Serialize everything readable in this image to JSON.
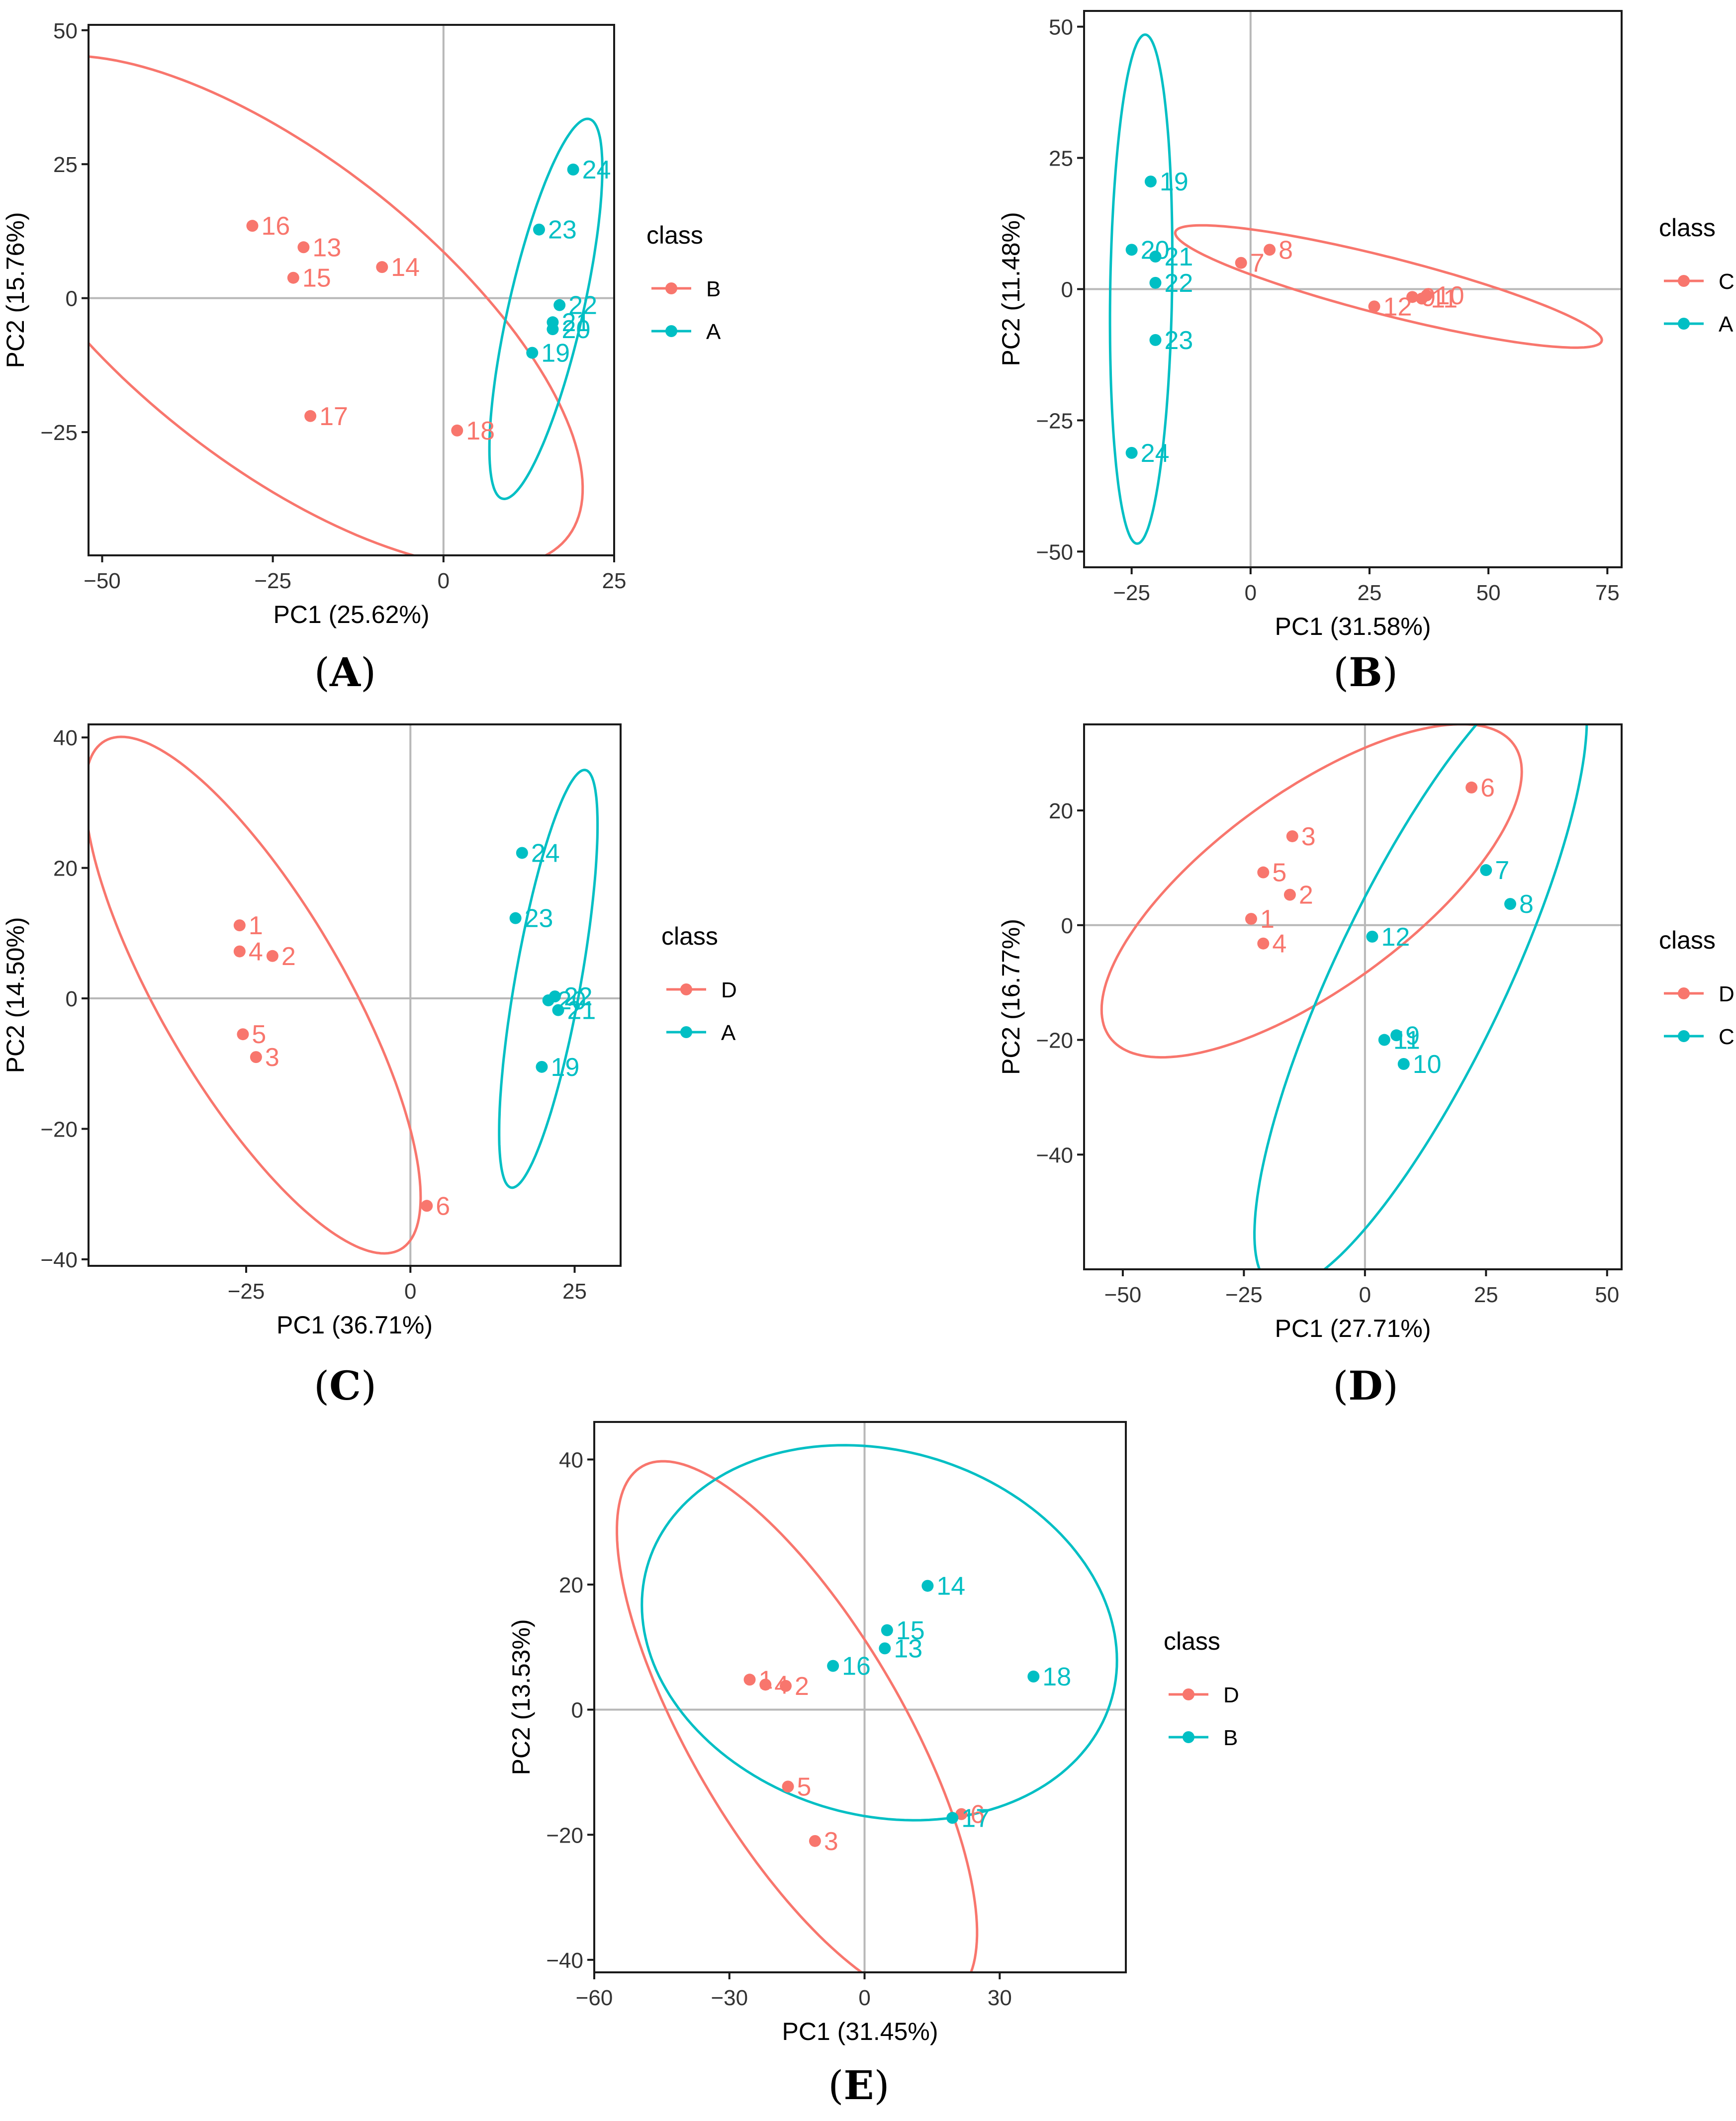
{
  "figure": {
    "colors": {
      "red": "#F8766D",
      "teal": "#00BFC4",
      "frame": "#1a1a1a",
      "zero": "#b8b8b8",
      "text": "#333333"
    },
    "legend_title": "class"
  },
  "chart_data": [
    {
      "id": "A",
      "type": "scatter",
      "caption_letter": "A",
      "xlabel": "PC1 (25.62%)",
      "ylabel": "PC2 (15.76%)",
      "xlim": [
        -52,
        25
      ],
      "ylim": [
        -48,
        51
      ],
      "xticks": [
        -50,
        -25,
        0,
        25
      ],
      "yticks": [
        50,
        25,
        0,
        -25
      ],
      "legend": [
        {
          "name": "B",
          "color": "red"
        },
        {
          "name": "A",
          "color": "teal"
        }
      ],
      "series": [
        {
          "name": "B",
          "color": "red",
          "points": [
            {
              "label": "16",
              "x": -28,
              "y": 13.5
            },
            {
              "label": "13",
              "x": -20.5,
              "y": 9.5
            },
            {
              "label": "14",
              "x": -9,
              "y": 5.8
            },
            {
              "label": "15",
              "x": -22,
              "y": 3.8
            },
            {
              "label": "17",
              "x": -19.5,
              "y": -22
            },
            {
              "label": "18",
              "x": 2,
              "y": -24.7
            }
          ],
          "ellipse": {
            "cx": -24,
            "cy": -2.5,
            "rx": 60,
            "ry": 25.5,
            "angle": -48
          }
        },
        {
          "name": "A",
          "color": "teal",
          "points": [
            {
              "label": "24",
              "x": 19,
              "y": 24
            },
            {
              "label": "23",
              "x": 14,
              "y": 12.8
            },
            {
              "label": "22",
              "x": 17,
              "y": -1.3
            },
            {
              "label": "21",
              "x": 16,
              "y": -4.5
            },
            {
              "label": "20",
              "x": 16,
              "y": -5.8
            },
            {
              "label": "19",
              "x": 13,
              "y": -10.2
            }
          ],
          "ellipse": {
            "cx": 15,
            "cy": -2,
            "rx": 36,
            "ry": 5.5,
            "angle": 80
          }
        }
      ]
    },
    {
      "id": "B",
      "type": "scatter",
      "caption_letter": "B",
      "xlabel": "PC1 (31.58%)",
      "ylabel": "PC2 (11.48%)",
      "xlim": [
        -35,
        78
      ],
      "ylim": [
        -53,
        53
      ],
      "xticks": [
        -25,
        0,
        25,
        50,
        75
      ],
      "yticks": [
        50,
        25,
        0,
        -25,
        -50
      ],
      "legend": [
        {
          "name": "C",
          "color": "red"
        },
        {
          "name": "A",
          "color": "teal"
        }
      ],
      "series": [
        {
          "name": "C",
          "color": "red",
          "points": [
            {
              "label": "7",
              "x": -2,
              "y": 5
            },
            {
              "label": "8",
              "x": 4,
              "y": 7.5
            },
            {
              "label": "12",
              "x": 26,
              "y": -3.3
            },
            {
              "label": "9",
              "x": 34,
              "y": -1.5
            },
            {
              "label": "11",
              "x": 36,
              "y": -1.8
            },
            {
              "label": "10",
              "x": 37,
              "y": -1.2
            }
          ],
          "ellipse": {
            "cx": 29,
            "cy": 0.5,
            "rx": 46,
            "ry": 5.5,
            "angle": -13
          }
        },
        {
          "name": "A",
          "color": "teal",
          "points": [
            {
              "label": "19",
              "x": -21,
              "y": 20.5
            },
            {
              "label": "20",
              "x": -25,
              "y": 7.5
            },
            {
              "label": "21",
              "x": -20,
              "y": 6.2
            },
            {
              "label": "22",
              "x": -20,
              "y": 1.2
            },
            {
              "label": "23",
              "x": -20,
              "y": -9.7
            },
            {
              "label": "24",
              "x": -25,
              "y": -31.2
            }
          ],
          "ellipse": {
            "cx": -23,
            "cy": 0,
            "rx": 48.5,
            "ry": 6.5,
            "angle": 89
          }
        }
      ]
    },
    {
      "id": "C",
      "type": "scatter",
      "caption_letter": "C",
      "xlabel": "PC1 (36.71%)",
      "ylabel": "PC2 (14.50%)",
      "xlim": [
        -49,
        32
      ],
      "ylim": [
        -41,
        42
      ],
      "xticks": [
        -25,
        0,
        25
      ],
      "yticks": [
        40,
        20,
        0,
        -20,
        -40
      ],
      "legend": [
        {
          "name": "D",
          "color": "red"
        },
        {
          "name": "A",
          "color": "teal"
        }
      ],
      "series": [
        {
          "name": "D",
          "color": "red",
          "points": [
            {
              "label": "1",
              "x": -26,
              "y": 11.2
            },
            {
              "label": "4",
              "x": -26,
              "y": 7.2
            },
            {
              "label": "2",
              "x": -21,
              "y": 6.5
            },
            {
              "label": "5",
              "x": -25.5,
              "y": -5.5
            },
            {
              "label": "3",
              "x": -23.5,
              "y": -9
            },
            {
              "label": "6",
              "x": 2.5,
              "y": -31.8
            }
          ],
          "ellipse": {
            "cx": -24,
            "cy": 0.5,
            "rx": 45,
            "ry": 14,
            "angle": -60
          }
        },
        {
          "name": "A",
          "color": "teal",
          "points": [
            {
              "label": "24",
              "x": 17,
              "y": 22.3
            },
            {
              "label": "23",
              "x": 16,
              "y": 12.3
            },
            {
              "label": "22",
              "x": 22,
              "y": 0.3
            },
            {
              "label": "20",
              "x": 21,
              "y": -0.3
            },
            {
              "label": "21",
              "x": 22.5,
              "y": -1.8
            },
            {
              "label": "19",
              "x": 20,
              "y": -10.5
            }
          ],
          "ellipse": {
            "cx": 21,
            "cy": 3,
            "rx": 32.5,
            "ry": 5,
            "angle": 80
          }
        }
      ]
    },
    {
      "id": "D",
      "type": "scatter",
      "caption_letter": "D",
      "xlabel": "PC1 (27.71%)",
      "ylabel": "PC2 (16.77%)",
      "xlim": [
        -58,
        53
      ],
      "ylim": [
        -60,
        35
      ],
      "xticks": [
        -50,
        -25,
        0,
        25,
        50
      ],
      "yticks": [
        20,
        0,
        -20,
        -40
      ],
      "legend": [
        {
          "name": "D",
          "color": "red"
        },
        {
          "name": "C",
          "color": "teal"
        }
      ],
      "series": [
        {
          "name": "D",
          "color": "red",
          "points": [
            {
              "label": "6",
              "x": 22,
              "y": 24
            },
            {
              "label": "3",
              "x": -15,
              "y": 15.5
            },
            {
              "label": "5",
              "x": -21,
              "y": 9.2
            },
            {
              "label": "2",
              "x": -15.5,
              "y": 5.3
            },
            {
              "label": "1",
              "x": -23.5,
              "y": 1.1
            },
            {
              "label": "4",
              "x": -21,
              "y": -3.2
            }
          ],
          "ellipse": {
            "cx": -11,
            "cy": 6,
            "rx": 49,
            "ry": 18,
            "angle": 30
          }
        },
        {
          "name": "C",
          "color": "teal",
          "points": [
            {
              "label": "7",
              "x": 25,
              "y": 9.6
            },
            {
              "label": "8",
              "x": 30,
              "y": 3.7
            },
            {
              "label": "12",
              "x": 1.5,
              "y": -2
            },
            {
              "label": "9",
              "x": 6.5,
              "y": -19.2
            },
            {
              "label": "11",
              "x": 4,
              "y": -20
            },
            {
              "label": "10",
              "x": 8,
              "y": -24.2
            }
          ],
          "ellipse": {
            "cx": 11.5,
            "cy": -9,
            "rx": 62,
            "ry": 17,
            "angle": 60
          }
        }
      ]
    },
    {
      "id": "E",
      "type": "scatter",
      "caption_letter": "E",
      "xlabel": "PC1 (31.45%)",
      "ylabel": "PC2 (13.53%)",
      "xlim": [
        -60,
        58
      ],
      "ylim": [
        -42,
        46
      ],
      "xticks": [
        -60,
        -30,
        0,
        30
      ],
      "yticks": [
        40,
        20,
        0,
        -20,
        -40
      ],
      "legend": [
        {
          "name": "D",
          "color": "red"
        },
        {
          "name": "B",
          "color": "teal"
        }
      ],
      "series": [
        {
          "name": "D",
          "color": "red",
          "points": [
            {
              "label": "1",
              "x": -25.5,
              "y": 4.8
            },
            {
              "label": "4",
              "x": -22,
              "y": 4
            },
            {
              "label": "2",
              "x": -17.5,
              "y": 3.8
            },
            {
              "label": "5",
              "x": -17,
              "y": -12.3
            },
            {
              "label": "3",
              "x": -11,
              "y": -21
            },
            {
              "label": "6",
              "x": 21.5,
              "y": -16.7
            }
          ],
          "ellipse": {
            "cx": -15,
            "cy": -3.5,
            "rx": 55,
            "ry": 21,
            "angle": -48
          }
        },
        {
          "name": "B",
          "color": "teal",
          "points": [
            {
              "label": "14",
              "x": 14,
              "y": 19.8
            },
            {
              "label": "15",
              "x": 5,
              "y": 12.7
            },
            {
              "label": "13",
              "x": 4.5,
              "y": 9.8
            },
            {
              "label": "16",
              "x": -7,
              "y": 7
            },
            {
              "label": "18",
              "x": 37.5,
              "y": 5.3
            },
            {
              "label": "17",
              "x": 19.5,
              "y": -17.3
            }
          ],
          "ellipse": {
            "cx": 3.3,
            "cy": 12.3,
            "rx": 53,
            "ry": 29.5,
            "angle": -7
          }
        }
      ]
    }
  ]
}
